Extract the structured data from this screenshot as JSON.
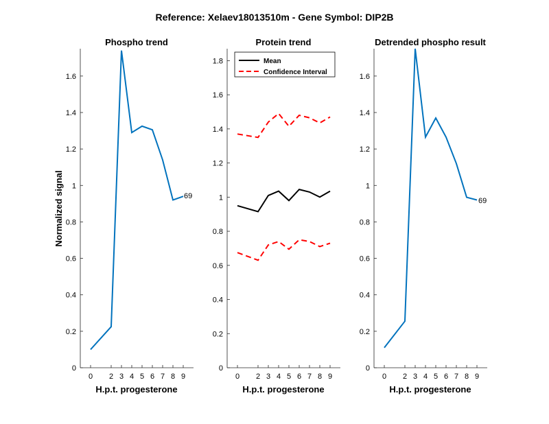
{
  "figure_title": "Reference:  Xelaev18013510m - Gene Symbol:  DIP2B",
  "colors": {
    "blue": "#0072BD",
    "black": "#000000",
    "red": "#FF0000"
  },
  "chart_data": [
    {
      "type": "line",
      "title": "Phospho trend",
      "xlabel": "H.p.t. progesterone",
      "ylabel": "Normalized signal",
      "x": [
        0,
        2,
        3,
        4,
        5,
        6,
        7,
        8,
        9
      ],
      "xticks": [
        "0",
        "2",
        "3",
        "4",
        "5",
        "6",
        "7",
        "8",
        "9"
      ],
      "xlim": [
        -1,
        10
      ],
      "ylim": [
        0,
        1.75
      ],
      "yticks": [
        0,
        0.2,
        0.4,
        0.6,
        0.8,
        1,
        1.2,
        1.4,
        1.6
      ],
      "ytick_labels": [
        "0",
        "0.2",
        "0.4",
        "0.6",
        "0.8",
        "1",
        "1.2",
        "1.4",
        "1.6"
      ],
      "series": [
        {
          "values": [
            0.1,
            0.225,
            1.74,
            1.29,
            1.325,
            1.305,
            1.14,
            0.92,
            0.94
          ],
          "color": "#0072BD",
          "style": "solid"
        }
      ],
      "end_label": "69"
    },
    {
      "type": "line",
      "title": "Protein trend",
      "xlabel": "H.p.t. progesterone",
      "ylabel": "",
      "x": [
        0,
        2,
        3,
        4,
        5,
        6,
        7,
        8,
        9
      ],
      "xticks": [
        "0",
        "2",
        "3",
        "4",
        "5",
        "6",
        "7",
        "8",
        "9"
      ],
      "xlim": [
        -1,
        10
      ],
      "ylim": [
        0,
        1.87
      ],
      "yticks": [
        0,
        0.2,
        0.4,
        0.6,
        0.8,
        1,
        1.2,
        1.4,
        1.6,
        1.8
      ],
      "ytick_labels": [
        "0",
        "0.2",
        "0.4",
        "0.6",
        "0.8",
        "1",
        "1.2",
        "1.4",
        "1.6",
        "1.8"
      ],
      "legend": {
        "position": "top-left",
        "entries": [
          "Mean",
          "Confidence Interval"
        ]
      },
      "series": [
        {
          "name": "Mean",
          "values": [
            0.95,
            0.915,
            1.01,
            1.035,
            0.98,
            1.045,
            1.03,
            1.0,
            1.035
          ],
          "color": "#000000",
          "style": "solid"
        },
        {
          "name": "Confidence Interval",
          "values": [
            1.37,
            1.35,
            1.44,
            1.49,
            1.415,
            1.48,
            1.465,
            1.435,
            1.47
          ],
          "color": "#FF0000",
          "style": "dashed"
        },
        {
          "name": "Confidence Interval",
          "values": [
            0.675,
            0.63,
            0.72,
            0.74,
            0.695,
            0.75,
            0.74,
            0.71,
            0.73
          ],
          "color": "#FF0000",
          "style": "dashed"
        }
      ]
    },
    {
      "type": "line",
      "title": "Detrended phospho result",
      "xlabel": "H.p.t. progesterone",
      "ylabel": "",
      "x": [
        0,
        2,
        3,
        4,
        5,
        6,
        7,
        8,
        9
      ],
      "xticks": [
        "0",
        "2",
        "3",
        "4",
        "5",
        "6",
        "7",
        "8",
        "9"
      ],
      "xlim": [
        -1,
        10
      ],
      "ylim": [
        0,
        1.75
      ],
      "yticks": [
        0,
        0.2,
        0.4,
        0.6,
        0.8,
        1,
        1.2,
        1.4,
        1.6
      ],
      "ytick_labels": [
        "0",
        "0.2",
        "0.4",
        "0.6",
        "0.8",
        "1",
        "1.2",
        "1.4",
        "1.6"
      ],
      "series": [
        {
          "values": [
            0.11,
            0.255,
            1.75,
            1.265,
            1.37,
            1.265,
            1.12,
            0.935,
            0.92
          ],
          "color": "#0072BD",
          "style": "solid"
        }
      ],
      "end_label": "69"
    }
  ]
}
